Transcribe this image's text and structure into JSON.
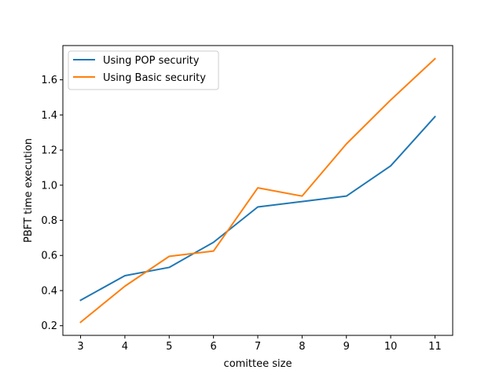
{
  "chart_data": {
    "type": "line",
    "title": "",
    "xlabel": "comittee size",
    "ylabel": "PBFT time execution",
    "x": [
      3,
      4,
      5,
      6,
      7,
      8,
      9,
      10,
      11
    ],
    "xticks": [
      "3",
      "4",
      "5",
      "6",
      "7",
      "8",
      "9",
      "10",
      "11"
    ],
    "yticks": [
      "0.2",
      "0.4",
      "0.6",
      "0.8",
      "1.0",
      "1.2",
      "1.4",
      "1.6"
    ],
    "xlim": [
      2.6,
      11.4
    ],
    "ylim": [
      0.145,
      1.795
    ],
    "grid": false,
    "legend_position": "upper-left",
    "series": [
      {
        "name": "Using POP security",
        "color": "#1f77b4",
        "values": [
          0.345,
          0.485,
          0.532,
          0.675,
          0.876,
          0.907,
          0.938,
          1.11,
          1.39
        ]
      },
      {
        "name": "Using Basic security",
        "color": "#ff7f0e",
        "values": [
          0.22,
          0.425,
          0.595,
          0.625,
          0.985,
          0.938,
          1.235,
          1.485,
          1.72
        ]
      }
    ]
  }
}
